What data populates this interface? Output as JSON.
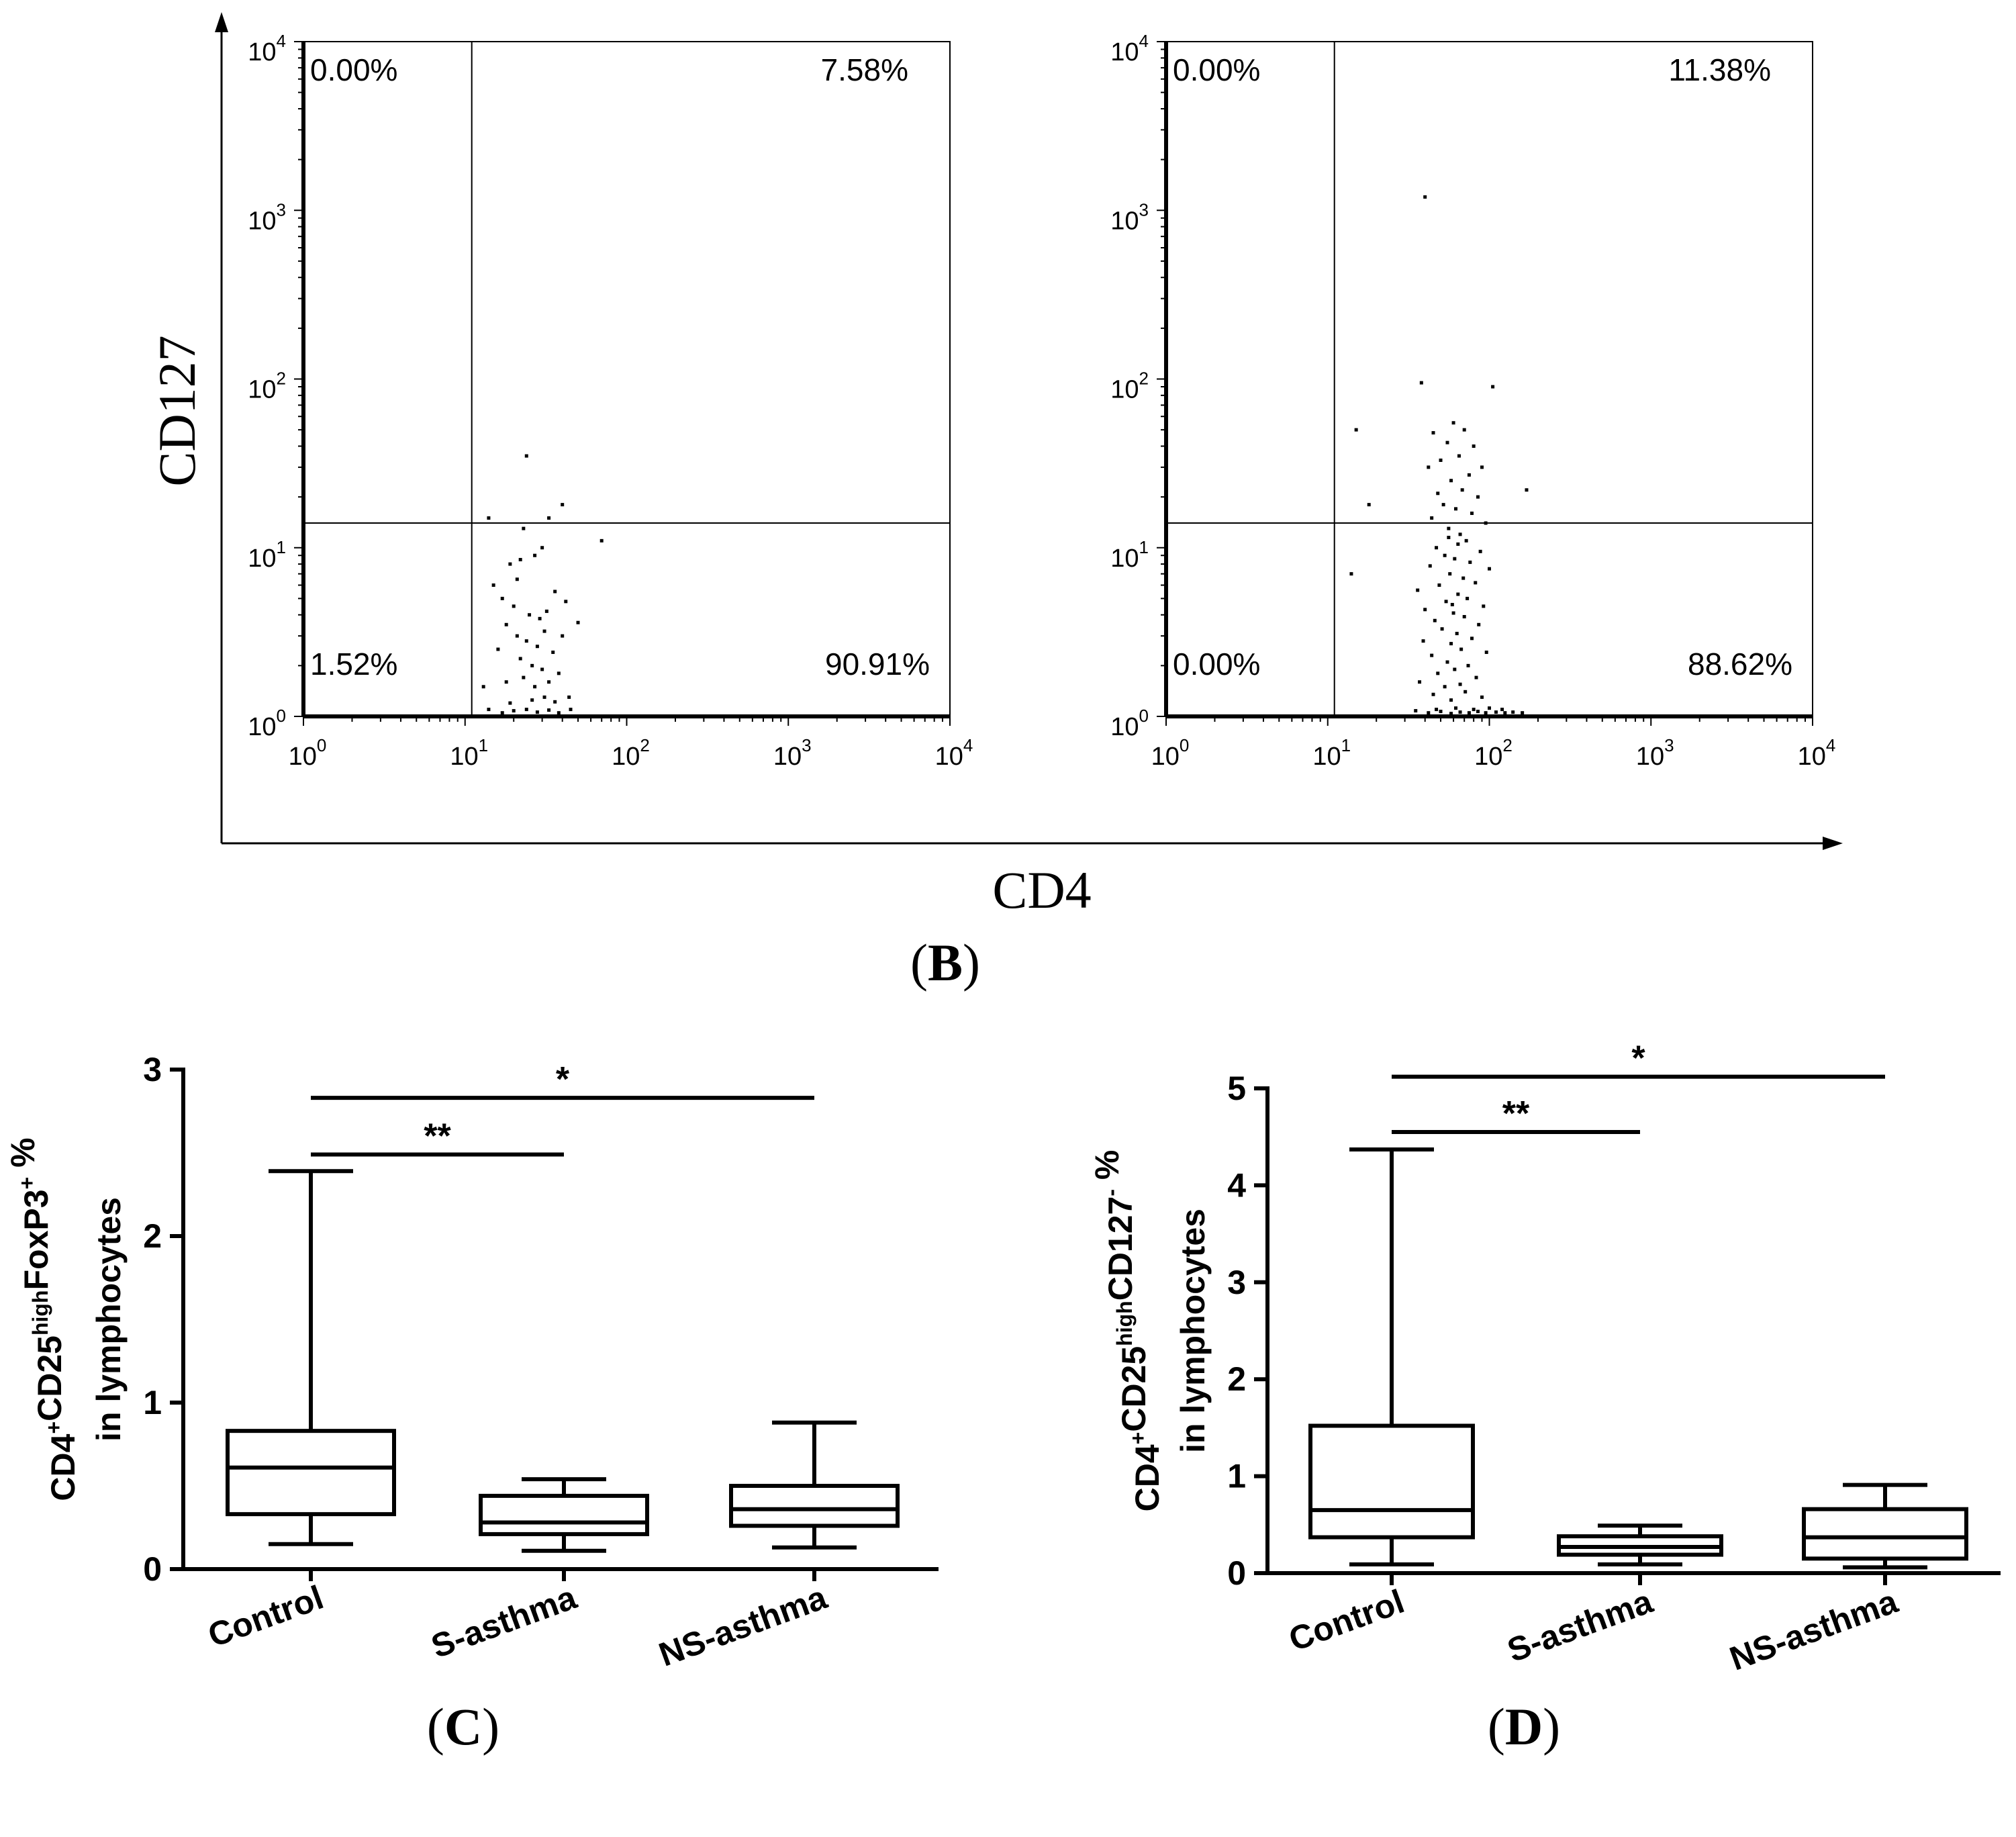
{
  "figure": {
    "shared_axes": {
      "y_label": "CD127",
      "x_label": "CD4"
    },
    "panel_labels": {
      "B": "B",
      "C": "C",
      "D": "D"
    }
  },
  "chart_data": [
    {
      "id": "flow_left",
      "type": "scatter",
      "title": "",
      "xlabel": "CD4",
      "ylabel": "CD127",
      "xscale": "log",
      "yscale": "log",
      "xlim": [
        1,
        10000
      ],
      "ylim": [
        1,
        10000
      ],
      "x_ticks": [
        {
          "base": "10",
          "exp": "0"
        },
        {
          "base": "10",
          "exp": "1"
        },
        {
          "base": "10",
          "exp": "2"
        },
        {
          "base": "10",
          "exp": "3"
        },
        {
          "base": "10",
          "exp": "4"
        }
      ],
      "y_ticks": [
        {
          "base": "10",
          "exp": "0"
        },
        {
          "base": "10",
          "exp": "1"
        },
        {
          "base": "10",
          "exp": "2"
        },
        {
          "base": "10",
          "exp": "3"
        },
        {
          "base": "10",
          "exp": "4"
        }
      ],
      "gate": {
        "x": 11,
        "y": 14
      },
      "quadrants": {
        "top_left": "0.00%",
        "top_right": "7.58%",
        "bottom_left": "1.52%",
        "bottom_right": "90.91%"
      },
      "points": [
        [
          24,
          35
        ],
        [
          40,
          18
        ],
        [
          33,
          15
        ],
        [
          70,
          11
        ],
        [
          14,
          15
        ],
        [
          23,
          13
        ],
        [
          27,
          9
        ],
        [
          22,
          8.5
        ],
        [
          19,
          8
        ],
        [
          30,
          10
        ],
        [
          15,
          6
        ],
        [
          17,
          5
        ],
        [
          20,
          4.5
        ],
        [
          25,
          4
        ],
        [
          29,
          3.8
        ],
        [
          32,
          4.2
        ],
        [
          18,
          3.5
        ],
        [
          21,
          3
        ],
        [
          24,
          2.8
        ],
        [
          28,
          2.6
        ],
        [
          31,
          3.2
        ],
        [
          36,
          5.5
        ],
        [
          42,
          4.8
        ],
        [
          50,
          3.6
        ],
        [
          22,
          2.2
        ],
        [
          26,
          2.0
        ],
        [
          30,
          1.9
        ],
        [
          35,
          2.4
        ],
        [
          16,
          2.5
        ],
        [
          40,
          3.0
        ],
        [
          13,
          1.5
        ],
        [
          18,
          1.6
        ],
        [
          23,
          1.7
        ],
        [
          27,
          1.5
        ],
        [
          33,
          1.6
        ],
        [
          38,
          1.8
        ],
        [
          14,
          1.1
        ],
        [
          17,
          1.05
        ],
        [
          20,
          1.08
        ],
        [
          24,
          1.1
        ],
        [
          28,
          1.06
        ],
        [
          33,
          1.09
        ],
        [
          38,
          1.05
        ],
        [
          45,
          1.1
        ],
        [
          19,
          1.2
        ],
        [
          26,
          1.25
        ],
        [
          31,
          1.3
        ],
        [
          36,
          1.22
        ],
        [
          44,
          1.3
        ],
        [
          21,
          6.5
        ]
      ]
    },
    {
      "id": "flow_right",
      "type": "scatter",
      "title": "",
      "xlabel": "CD4",
      "ylabel": "CD127",
      "xscale": "log",
      "yscale": "log",
      "xlim": [
        1,
        10000
      ],
      "ylim": [
        1,
        10000
      ],
      "x_ticks": [
        {
          "base": "10",
          "exp": "0"
        },
        {
          "base": "10",
          "exp": "1"
        },
        {
          "base": "10",
          "exp": "2"
        },
        {
          "base": "10",
          "exp": "3"
        },
        {
          "base": "10",
          "exp": "4"
        }
      ],
      "y_ticks": [
        {
          "base": "10",
          "exp": "0"
        },
        {
          "base": "10",
          "exp": "1"
        },
        {
          "base": "10",
          "exp": "2"
        },
        {
          "base": "10",
          "exp": "3"
        },
        {
          "base": "10",
          "exp": "4"
        }
      ],
      "gate": {
        "x": 11,
        "y": 14
      },
      "quadrants": {
        "top_left": "0.00%",
        "top_right": "11.38%",
        "bottom_left": "0.00%",
        "bottom_right": "88.62%"
      },
      "points": [
        [
          40,
          1200
        ],
        [
          38,
          95
        ],
        [
          105,
          90
        ],
        [
          15,
          50
        ],
        [
          170,
          22
        ],
        [
          18,
          18
        ],
        [
          14,
          7
        ],
        [
          60,
          55
        ],
        [
          70,
          50
        ],
        [
          45,
          48
        ],
        [
          55,
          42
        ],
        [
          80,
          40
        ],
        [
          65,
          35
        ],
        [
          50,
          33
        ],
        [
          90,
          30
        ],
        [
          42,
          30
        ],
        [
          75,
          27
        ],
        [
          58,
          25
        ],
        [
          68,
          22
        ],
        [
          48,
          21
        ],
        [
          85,
          20
        ],
        [
          52,
          18
        ],
        [
          62,
          17
        ],
        [
          78,
          16
        ],
        [
          44,
          15
        ],
        [
          95,
          14
        ],
        [
          56,
          13
        ],
        [
          66,
          12
        ],
        [
          72,
          11
        ],
        [
          47,
          10
        ],
        [
          88,
          9.5
        ],
        [
          53,
          9
        ],
        [
          61,
          8.6
        ],
        [
          76,
          8.2
        ],
        [
          43,
          7.8
        ],
        [
          100,
          7.5
        ],
        [
          57,
          7
        ],
        [
          69,
          6.6
        ],
        [
          82,
          6.2
        ],
        [
          49,
          6
        ],
        [
          36,
          5.6
        ],
        [
          64,
          5.3
        ],
        [
          73,
          5.0
        ],
        [
          54,
          4.8
        ],
        [
          92,
          4.5
        ],
        [
          40,
          4.3
        ],
        [
          60,
          4.1
        ],
        [
          70,
          3.9
        ],
        [
          46,
          3.7
        ],
        [
          86,
          3.5
        ],
        [
          51,
          3.3
        ],
        [
          63,
          3.1
        ],
        [
          78,
          2.9
        ],
        [
          39,
          2.8
        ],
        [
          58,
          2.7
        ],
        [
          67,
          2.5
        ],
        [
          96,
          2.4
        ],
        [
          44,
          2.3
        ],
        [
          55,
          2.1
        ],
        [
          74,
          2.0
        ],
        [
          61,
          1.9
        ],
        [
          48,
          1.8
        ],
        [
          83,
          1.7
        ],
        [
          37,
          1.6
        ],
        [
          66,
          1.55
        ],
        [
          53,
          1.5
        ],
        [
          71,
          1.4
        ],
        [
          45,
          1.35
        ],
        [
          90,
          1.3
        ],
        [
          58,
          1.25
        ],
        [
          35,
          1.08
        ],
        [
          42,
          1.05
        ],
        [
          50,
          1.07
        ],
        [
          58,
          1.04
        ],
        [
          66,
          1.06
        ],
        [
          75,
          1.05
        ],
        [
          85,
          1.07
        ],
        [
          95,
          1.05
        ],
        [
          110,
          1.06
        ],
        [
          125,
          1.05
        ],
        [
          140,
          1.06
        ],
        [
          160,
          1.05
        ],
        [
          47,
          1.1
        ],
        [
          62,
          1.12
        ],
        [
          80,
          1.1
        ],
        [
          100,
          1.12
        ],
        [
          120,
          1.1
        ],
        [
          56,
          11.5
        ],
        [
          64,
          10.5
        ],
        [
          59,
          4.6
        ]
      ]
    },
    {
      "id": "box_c",
      "type": "box",
      "title": "",
      "ylabel_lines": [
        "CD4+CD25highFoxP3+ %",
        "in lymphocytes"
      ],
      "ylabel_parts": [
        {
          "text": "CD4",
          "sup": "+"
        },
        {
          "text": "CD25",
          "sup": "high"
        },
        {
          "text": "FoxP3",
          "sup": "+"
        },
        {
          "text": " %",
          "sup": ""
        }
      ],
      "ylabel_line2": "in lymphocytes",
      "categories": [
        "Control",
        "S-asthma",
        "NS-asthma"
      ],
      "ylim": [
        0,
        3
      ],
      "y_ticks": [
        0,
        1,
        2,
        3
      ],
      "boxes": [
        {
          "min": 0.15,
          "q1": 0.33,
          "median": 0.61,
          "q3": 0.83,
          "max": 2.39
        },
        {
          "min": 0.11,
          "q1": 0.21,
          "median": 0.28,
          "q3": 0.44,
          "max": 0.54
        },
        {
          "min": 0.13,
          "q1": 0.26,
          "median": 0.36,
          "q3": 0.5,
          "max": 0.88
        }
      ],
      "significance": [
        {
          "from": 0,
          "to": 1,
          "y": 2.49,
          "label": "**"
        },
        {
          "from": 0,
          "to": 2,
          "y": 2.83,
          "label": "*"
        }
      ]
    },
    {
      "id": "box_d",
      "type": "box",
      "title": "",
      "ylabel_lines": [
        "CD4+CD25highCD127- %",
        "in lymphocytes"
      ],
      "ylabel_parts": [
        {
          "text": "CD4",
          "sup": "+"
        },
        {
          "text": "CD25",
          "sup": "high"
        },
        {
          "text": "CD127",
          "sup": "-"
        },
        {
          "text": " %",
          "sup": ""
        }
      ],
      "ylabel_line2": "in lymphocytes",
      "categories": [
        "Control",
        "S-asthma",
        "NS-asthma"
      ],
      "ylim": [
        0,
        5
      ],
      "y_ticks": [
        0,
        1,
        2,
        3,
        4,
        5
      ],
      "boxes": [
        {
          "min": 0.09,
          "q1": 0.37,
          "median": 0.65,
          "q3": 1.52,
          "max": 4.37
        },
        {
          "min": 0.09,
          "q1": 0.19,
          "median": 0.27,
          "q3": 0.38,
          "max": 0.49
        },
        {
          "min": 0.06,
          "q1": 0.15,
          "median": 0.37,
          "q3": 0.66,
          "max": 0.91
        }
      ],
      "significance": [
        {
          "from": 0,
          "to": 1,
          "y": 4.55,
          "label": "**"
        },
        {
          "from": 0,
          "to": 2,
          "y": 5.12,
          "label": "*"
        }
      ]
    }
  ]
}
